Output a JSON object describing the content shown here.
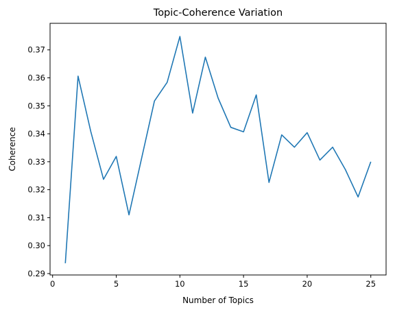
{
  "chart_data": {
    "type": "line",
    "title": "Topic-Coherence Variation",
    "xlabel": "Number of Topics",
    "ylabel": "Coherence",
    "xlim": [
      -0.2,
      26.2
    ],
    "ylim": [
      0.2895,
      0.3795
    ],
    "xticks": [
      0,
      5,
      10,
      15,
      20,
      25
    ],
    "yticks": [
      0.29,
      0.3,
      0.31,
      0.32,
      0.33,
      0.34,
      0.35,
      0.36,
      0.37
    ],
    "grid": false,
    "series": [
      {
        "color": "#1f77b4",
        "x": [
          1,
          2,
          3,
          4,
          5,
          6,
          7,
          8,
          9,
          10,
          11,
          12,
          13,
          14,
          15,
          16,
          17,
          18,
          19,
          20,
          21,
          22,
          23,
          24,
          25
        ],
        "y": [
          0.2937,
          0.3606,
          0.3408,
          0.3237,
          0.3319,
          0.311,
          0.3314,
          0.3517,
          0.3584,
          0.3748,
          0.3474,
          0.3674,
          0.3528,
          0.3423,
          0.3407,
          0.3539,
          0.3226,
          0.3396,
          0.3352,
          0.3404,
          0.3306,
          0.3352,
          0.3272,
          0.3174,
          0.33
        ]
      }
    ]
  }
}
